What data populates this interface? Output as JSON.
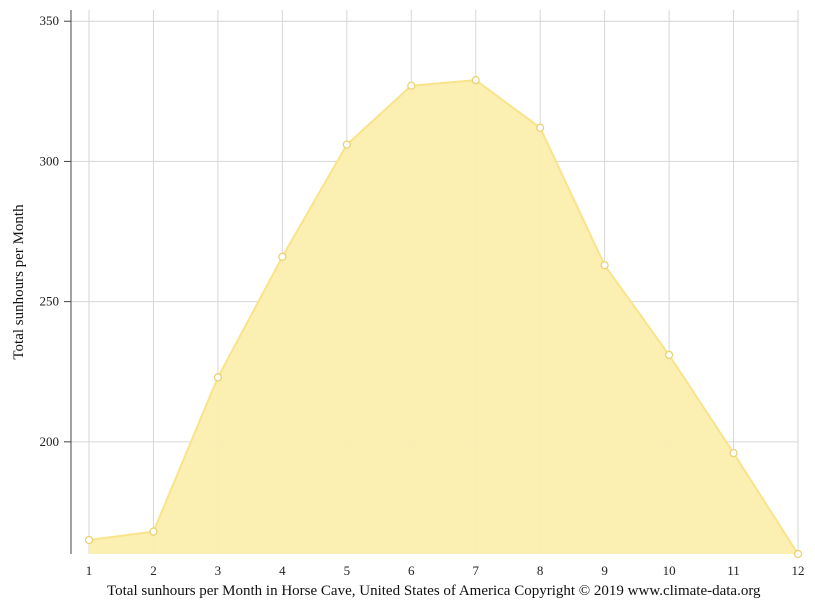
{
  "chart_data": {
    "type": "area",
    "x": [
      1,
      2,
      3,
      4,
      5,
      6,
      7,
      8,
      9,
      10,
      11,
      12
    ],
    "values": [
      165,
      168,
      223,
      266,
      306,
      327,
      329,
      312,
      263,
      231,
      196,
      160
    ],
    "ylabel": "Total sunhours per Month",
    "xlabel": "",
    "ylim": [
      160,
      354
    ],
    "yticks": [
      200,
      250,
      300,
      350
    ],
    "xticks": [
      1,
      2,
      3,
      4,
      5,
      6,
      7,
      8,
      9,
      10,
      11,
      12
    ],
    "grid": true,
    "color_fill": "#fbeeae",
    "color_line": "#f8e48a"
  },
  "caption": "Total sunhours per Month in Horse Cave, United States of America Copyright © 2019 www.climate-data.org"
}
